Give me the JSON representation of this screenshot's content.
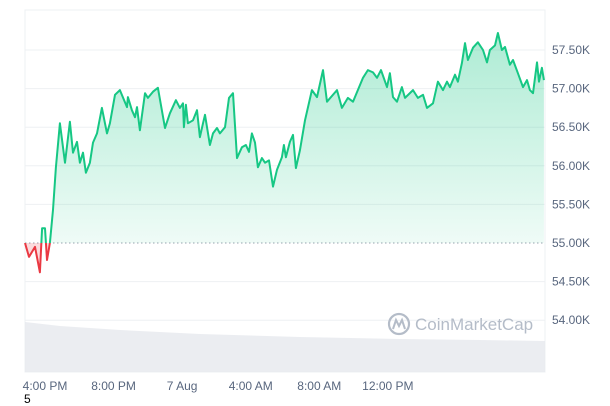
{
  "chart_data": {
    "type": "area",
    "title": "",
    "xlabel": "",
    "ylabel": "",
    "baseline": 55000,
    "ylim": [
      53700,
      57950
    ],
    "grid": true,
    "y_ticks": [
      {
        "value": 57500,
        "label": "57.50K"
      },
      {
        "value": 57000,
        "label": "57.00K"
      },
      {
        "value": 56500,
        "label": "56.50K"
      },
      {
        "value": 56000,
        "label": "56.00K"
      },
      {
        "value": 55500,
        "label": "55.50K"
      },
      {
        "value": 55000,
        "label": "55.00K"
      },
      {
        "value": 54500,
        "label": "54.50K"
      },
      {
        "value": 54000,
        "label": "54.00K"
      }
    ],
    "x_ticks": [
      {
        "time": "6 16:00",
        "label": "4:00 PM"
      },
      {
        "time": "6 20:00",
        "label": "8:00 PM"
      },
      {
        "time": "7 00:00",
        "label": "7 Aug"
      },
      {
        "time": "7 04:00",
        "label": "4:00 AM"
      },
      {
        "time": "7 08:00",
        "label": "8:00 AM"
      },
      {
        "time": "7 12:00",
        "label": "12:00 PM"
      }
    ],
    "colors": {
      "up": "#16c784",
      "down": "#ea3943",
      "grid": "#eef0f3",
      "volume": "#e6e9ee"
    },
    "series": [
      {
        "points": [
          [
            "6 14:50",
            55000
          ],
          [
            "6 15:04",
            54820
          ],
          [
            "6 15:25",
            54950
          ],
          [
            "6 15:42",
            54620
          ],
          [
            "6 15:50",
            55190
          ],
          [
            "6 16:00",
            55190
          ],
          [
            "6 16:07",
            54780
          ],
          [
            "6 16:17",
            55000
          ],
          [
            "6 16:28",
            55430
          ],
          [
            "6 16:38",
            55980
          ],
          [
            "6 16:52",
            56550
          ],
          [
            "6 17:10",
            56040
          ],
          [
            "6 17:27",
            56570
          ],
          [
            "6 17:38",
            56170
          ],
          [
            "6 17:52",
            56310
          ],
          [
            "6 18:02",
            56040
          ],
          [
            "6 18:13",
            56170
          ],
          [
            "6 18:23",
            55910
          ],
          [
            "6 18:37",
            56040
          ],
          [
            "6 18:48",
            56300
          ],
          [
            "6 19:02",
            56420
          ],
          [
            "6 19:19",
            56750
          ],
          [
            "6 19:37",
            56420
          ],
          [
            "6 19:47",
            56550
          ],
          [
            "6 20:05",
            56920
          ],
          [
            "6 20:22",
            56980
          ],
          [
            "6 20:47",
            56760
          ],
          [
            "6 20:50",
            56890
          ],
          [
            "6 21:04",
            56720
          ],
          [
            "6 21:15",
            56630
          ],
          [
            "6 21:22",
            56760
          ],
          [
            "6 21:32",
            56460
          ],
          [
            "6 21:50",
            56940
          ],
          [
            "6 22:00",
            56880
          ],
          [
            "6 22:18",
            56960
          ],
          [
            "6 22:35",
            57010
          ],
          [
            "6 23:00",
            56490
          ],
          [
            "6 23:17",
            56680
          ],
          [
            "6 23:38",
            56850
          ],
          [
            "6 23:52",
            56750
          ],
          [
            "7 00:03",
            56810
          ],
          [
            "7 00:06",
            56500
          ],
          [
            "7 00:13",
            56790
          ],
          [
            "7 00:20",
            56550
          ],
          [
            "7 00:38",
            56590
          ],
          [
            "7 00:52",
            56720
          ],
          [
            "7 01:02",
            56370
          ],
          [
            "7 01:13",
            56550
          ],
          [
            "7 01:20",
            56660
          ],
          [
            "7 01:37",
            56270
          ],
          [
            "7 01:48",
            56420
          ],
          [
            "7 02:02",
            56490
          ],
          [
            "7 02:12",
            56420
          ],
          [
            "7 02:30",
            56500
          ],
          [
            "7 02:44",
            56880
          ],
          [
            "7 02:58",
            56940
          ],
          [
            "7 03:12",
            56100
          ],
          [
            "7 03:29",
            56240
          ],
          [
            "7 03:43",
            56270
          ],
          [
            "7 03:54",
            56180
          ],
          [
            "7 04:04",
            56420
          ],
          [
            "7 04:15",
            56300
          ],
          [
            "7 04:25",
            55980
          ],
          [
            "7 04:39",
            56100
          ],
          [
            "7 04:50",
            56040
          ],
          [
            "7 05:04",
            56070
          ],
          [
            "7 05:18",
            55730
          ],
          [
            "7 05:32",
            55950
          ],
          [
            "7 05:49",
            56110
          ],
          [
            "7 05:56",
            56270
          ],
          [
            "7 06:03",
            56110
          ],
          [
            "7 06:17",
            56310
          ],
          [
            "7 06:28",
            56400
          ],
          [
            "7 06:38",
            55970
          ],
          [
            "7 06:52",
            56200
          ],
          [
            "7 07:10",
            56590
          ],
          [
            "7 07:34",
            56980
          ],
          [
            "7 07:52",
            56890
          ],
          [
            "7 08:13",
            57240
          ],
          [
            "7 08:27",
            56830
          ],
          [
            "7 09:02",
            56980
          ],
          [
            "7 09:19",
            56750
          ],
          [
            "7 09:40",
            56880
          ],
          [
            "7 09:58",
            56830
          ],
          [
            "7 10:33",
            57140
          ],
          [
            "7 10:50",
            57240
          ],
          [
            "7 11:08",
            57210
          ],
          [
            "7 11:22",
            57140
          ],
          [
            "7 11:36",
            57240
          ],
          [
            "7 11:57",
            57020
          ],
          [
            "7 12:07",
            57200
          ],
          [
            "7 12:18",
            56890
          ],
          [
            "7 12:32",
            56830
          ],
          [
            "7 12:49",
            57020
          ],
          [
            "7 13:00",
            56880
          ],
          [
            "7 13:28",
            56980
          ],
          [
            "7 13:45",
            56880
          ],
          [
            "7 14:03",
            56920
          ],
          [
            "7 14:17",
            56750
          ],
          [
            "7 14:38",
            56810
          ],
          [
            "7 14:55",
            57090
          ],
          [
            "7 15:13",
            56980
          ],
          [
            "7 15:27",
            57090
          ],
          [
            "7 15:37",
            57020
          ],
          [
            "7 15:55",
            57180
          ],
          [
            "7 16:05",
            57090
          ],
          [
            "7 16:19",
            57330
          ],
          [
            "7 16:30",
            57590
          ],
          [
            "7 16:40",
            57370
          ],
          [
            "7 16:58",
            57530
          ],
          [
            "7 17:15",
            57600
          ],
          [
            "7 17:33",
            57500
          ],
          [
            "7 17:47",
            57340
          ],
          [
            "7 17:57",
            57500
          ],
          [
            "7 18:15",
            57560
          ],
          [
            "7 18:25",
            57720
          ],
          [
            "7 18:39",
            57500
          ],
          [
            "7 18:50",
            57540
          ],
          [
            "7 19:07",
            57310
          ],
          [
            "7 19:18",
            57370
          ],
          [
            "7 19:35",
            57200
          ],
          [
            "7 19:53",
            57020
          ],
          [
            "7 20:07",
            57110
          ],
          [
            "7 20:17",
            56980
          ],
          [
            "7 20:28",
            56940
          ],
          [
            "7 20:42",
            57340
          ],
          [
            "7 20:49",
            57090
          ],
          [
            "7 20:59",
            57270
          ],
          [
            "7 21:06",
            57110
          ]
        ]
      }
    ],
    "watermark": "CoinMarketCap"
  },
  "footnote": "5"
}
